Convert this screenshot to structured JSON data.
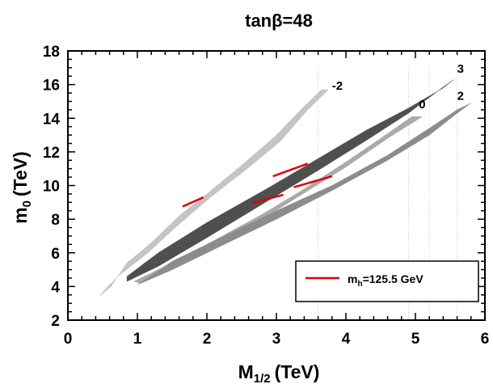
{
  "chart_data": {
    "type": "area",
    "title": "tanβ=48",
    "xlabel": {
      "main": "M",
      "sub": "1/2",
      "unit": "(TeV)"
    },
    "ylabel": {
      "main": "m",
      "sub": "0",
      "unit": "(TeV)"
    },
    "xlim": [
      0,
      6
    ],
    "ylim": [
      2,
      18
    ],
    "xticks": [
      0,
      1,
      2,
      3,
      4,
      5,
      6
    ],
    "yticks": [
      2,
      4,
      6,
      8,
      10,
      12,
      14,
      16,
      18
    ],
    "grid": false,
    "series": [
      {
        "name": "-2",
        "color": "#c4c4c4",
        "polygon": [
          [
            0.45,
            3.4
          ],
          [
            0.62,
            4.0
          ],
          [
            0.85,
            5.4
          ],
          [
            1.2,
            6.6
          ],
          [
            1.6,
            8.2
          ],
          [
            2.0,
            9.5
          ],
          [
            2.5,
            11.2
          ],
          [
            3.0,
            13.0
          ],
          [
            3.35,
            14.5
          ],
          [
            3.65,
            15.7
          ],
          [
            3.75,
            15.7
          ],
          [
            3.45,
            14.5
          ],
          [
            3.05,
            12.6
          ],
          [
            2.55,
            10.9
          ],
          [
            2.05,
            9.3
          ],
          [
            1.6,
            7.7
          ],
          [
            1.15,
            6.0
          ],
          [
            0.75,
            4.7
          ],
          [
            0.55,
            3.9
          ]
        ],
        "mh_segment": [
          [
            1.65,
            8.75
          ],
          [
            1.95,
            9.3
          ]
        ]
      },
      {
        "name": "0",
        "color": "#aaaaaa",
        "polygon": [
          [
            0.95,
            4.3
          ],
          [
            1.5,
            5.4
          ],
          [
            2.0,
            6.5
          ],
          [
            2.8,
            8.3
          ],
          [
            3.4,
            9.8
          ],
          [
            4.0,
            11.4
          ],
          [
            4.5,
            12.8
          ],
          [
            4.95,
            14.1
          ],
          [
            5.1,
            14.1
          ],
          [
            4.6,
            12.8
          ],
          [
            4.0,
            11.1
          ],
          [
            3.3,
            9.3
          ],
          [
            2.6,
            7.5
          ],
          [
            2.0,
            6.0
          ],
          [
            1.5,
            5.0
          ],
          [
            1.05,
            4.2
          ]
        ],
        "mh_segment": [
          [
            2.65,
            8.95
          ],
          [
            3.1,
            9.45
          ]
        ]
      },
      {
        "name": "2",
        "color": "#8c8c8c",
        "polygon": [
          [
            1.0,
            4.1
          ],
          [
            1.5,
            5.5
          ],
          [
            2.2,
            6.9
          ],
          [
            3.0,
            8.5
          ],
          [
            3.8,
            10.0
          ],
          [
            4.6,
            11.8
          ],
          [
            5.2,
            13.4
          ],
          [
            5.6,
            14.5
          ],
          [
            5.8,
            14.9
          ],
          [
            5.6,
            14.3
          ],
          [
            5.2,
            13.0
          ],
          [
            4.6,
            11.5
          ],
          [
            3.8,
            9.7
          ],
          [
            3.0,
            8.0
          ],
          [
            2.2,
            6.4
          ],
          [
            1.5,
            5.0
          ]
        ],
        "mh_segment": [
          [
            3.25,
            9.9
          ],
          [
            3.8,
            10.55
          ]
        ]
      },
      {
        "name": "3",
        "color": "#4f4f4f",
        "polygon": [
          [
            0.85,
            4.3
          ],
          [
            1.3,
            5.2
          ],
          [
            2.0,
            6.9
          ],
          [
            2.8,
            8.9
          ],
          [
            3.6,
            10.9
          ],
          [
            4.3,
            12.7
          ],
          [
            4.9,
            14.3
          ],
          [
            5.35,
            15.7
          ],
          [
            5.55,
            16.3
          ],
          [
            5.4,
            15.8
          ],
          [
            4.9,
            14.6
          ],
          [
            4.3,
            13.3
          ],
          [
            3.6,
            11.6
          ],
          [
            2.9,
            9.9
          ],
          [
            2.0,
            7.8
          ],
          [
            1.3,
            6.0
          ],
          [
            0.85,
            4.6
          ]
        ],
        "mh_segment": [
          [
            2.95,
            10.55
          ],
          [
            3.45,
            11.3
          ]
        ]
      }
    ],
    "series_label_positions": [
      {
        "name": "-2",
        "x": 3.8,
        "y": 15.7
      },
      {
        "name": "3",
        "x": 5.6,
        "y": 16.7
      },
      {
        "name": "0",
        "x": 5.05,
        "y": 14.6
      },
      {
        "name": "2",
        "x": 5.6,
        "y": 15.1
      }
    ],
    "dotted_lines_x": [
      3.6,
      4.9,
      5.2,
      5.6
    ],
    "legend": {
      "label_main": "m",
      "label_sub": "h",
      "label_rest": "=125.5 GeV",
      "color": "#e00000",
      "placement": "bottom-right"
    }
  }
}
